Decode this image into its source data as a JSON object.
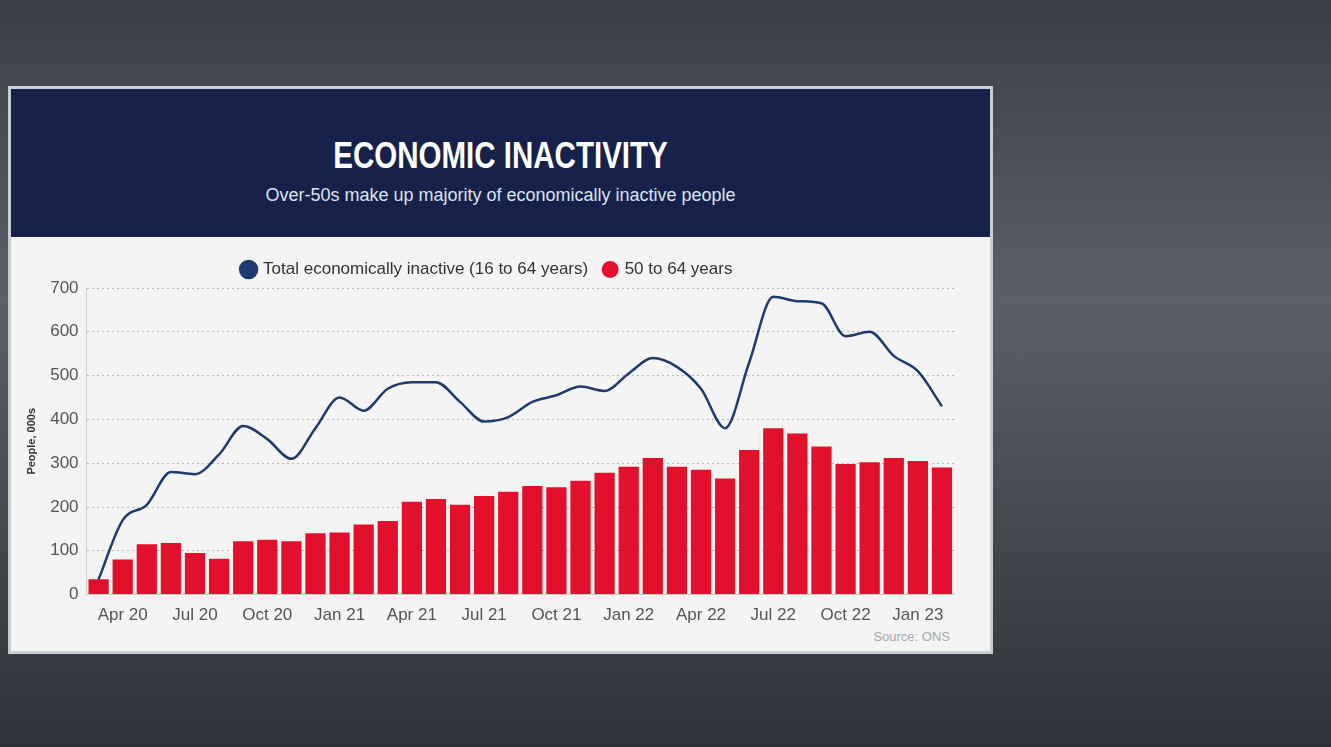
{
  "chart_data": {
    "type": "bar",
    "title": "ECONOMIC INACTIVITY",
    "subtitle": "Over-50s make up majority of economically inactive people",
    "y_label": "People, 000s",
    "source": "Source: ONS",
    "categories": [
      null,
      "Apr 20",
      null,
      null,
      "Jul 20",
      null,
      null,
      "Oct 20",
      null,
      null,
      "Jan 21",
      null,
      null,
      "Apr 21",
      null,
      null,
      "Jul 21",
      null,
      null,
      "Oct 21",
      null,
      null,
      "Jan 22",
      null,
      null,
      "Apr 22",
      null,
      null,
      "Jul 22",
      null,
      null,
      "Oct 22",
      null,
      null,
      "Jan 23",
      null
    ],
    "series": [
      {
        "name": "Total economically inactive (16 to 64 years)",
        "type": "line",
        "color": "#1f3a6e",
        "values": [
          35,
          170,
          205,
          280,
          275,
          320,
          385,
          355,
          310,
          380,
          450,
          420,
          470,
          485,
          485,
          440,
          395,
          405,
          440,
          455,
          475,
          465,
          505,
          540,
          520,
          470,
          380,
          530,
          680,
          670,
          665,
          590,
          600,
          545,
          510,
          430
        ]
      },
      {
        "name": "50 to 64 years",
        "type": "bar",
        "color": "#e3102b",
        "values": [
          35,
          80,
          115,
          118,
          95,
          82,
          122,
          125,
          122,
          140,
          142,
          160,
          168,
          212,
          218,
          205,
          225,
          235,
          248,
          245,
          260,
          278,
          292,
          312,
          292,
          285,
          265,
          330,
          380,
          368,
          338,
          298,
          302,
          312,
          305,
          290
        ]
      }
    ],
    "ylim": [
      0,
      700
    ],
    "yticks": [
      0,
      100,
      200,
      300,
      400,
      500,
      600,
      700
    ],
    "grid": true,
    "legend": "top"
  }
}
